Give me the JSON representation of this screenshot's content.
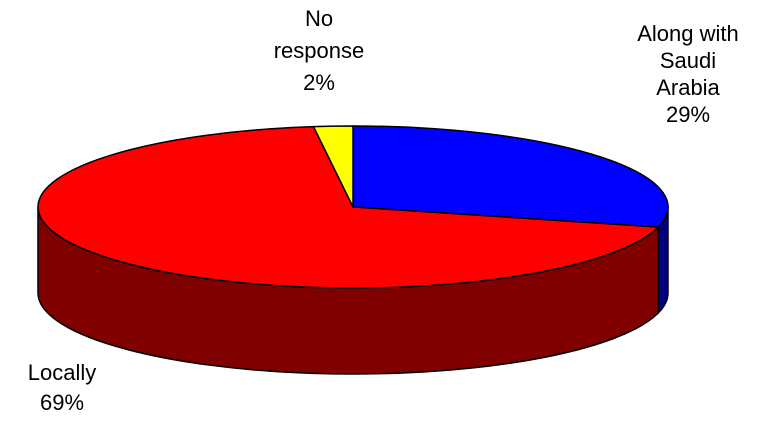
{
  "chart_data": {
    "type": "pie",
    "style": "3d",
    "title": "",
    "slices": [
      {
        "label_lines": [
          "Along with",
          "Saudi",
          "Arabia"
        ],
        "percent_label": "29%",
        "value": 29,
        "color": "#0000ff",
        "side_color": "#000080"
      },
      {
        "label_lines": [
          "Locally"
        ],
        "percent_label": "69%",
        "value": 69,
        "color": "#ff0000",
        "side_color": "#800000"
      },
      {
        "label_lines": [
          "No",
          "response"
        ],
        "percent_label": "2%",
        "value": 2,
        "color": "#ffff00",
        "side_color": "#808000"
      }
    ],
    "legend": "none",
    "outline_color": "#000000"
  }
}
